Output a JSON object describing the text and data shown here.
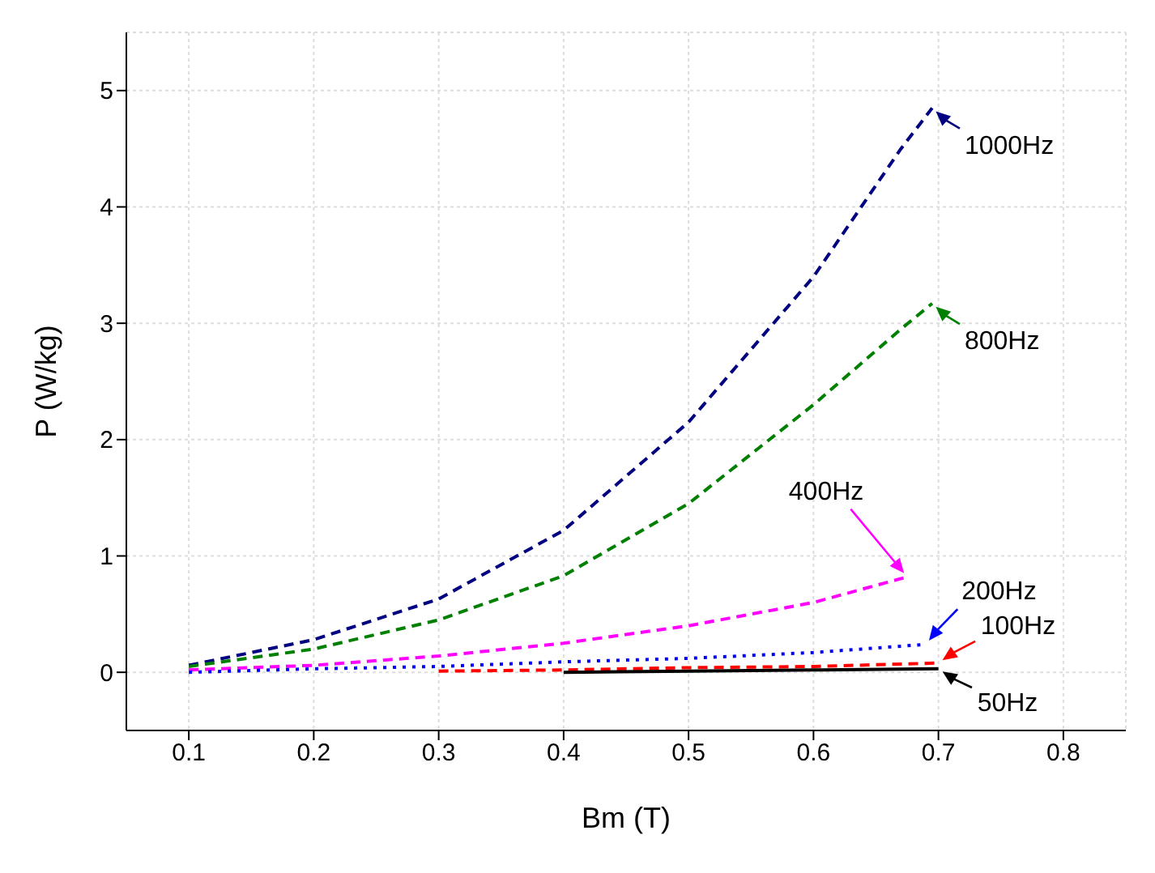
{
  "chart_data": {
    "type": "line",
    "xlabel": "Bm (T)",
    "ylabel": "P (W/kg)",
    "xlim": [
      0.05,
      0.85
    ],
    "xticks": [
      0.1,
      0.2,
      0.3,
      0.4,
      0.5,
      0.6,
      0.7,
      0.8
    ],
    "ylim": [
      -0.5,
      5.5
    ],
    "yticks": [
      0,
      1,
      2,
      3,
      4,
      5
    ],
    "grid": true,
    "legend": "right",
    "marker": "none",
    "series": [
      {
        "name": "1000Hz",
        "color": "#000080",
        "line_style": "dashed",
        "x": [
          0.1,
          0.2,
          0.3,
          0.4,
          0.5,
          0.6,
          0.67,
          0.695
        ],
        "values": [
          0.06,
          0.28,
          0.63,
          1.22,
          2.15,
          3.4,
          4.5,
          4.85
        ]
      },
      {
        "name": "800Hz",
        "color": "#008000",
        "line_style": "dashed",
        "x": [
          0.1,
          0.2,
          0.3,
          0.4,
          0.5,
          0.6,
          0.67,
          0.695
        ],
        "values": [
          0.05,
          0.2,
          0.45,
          0.83,
          1.45,
          2.3,
          2.95,
          3.17
        ]
      },
      {
        "name": "400Hz",
        "color": "#ff00ff",
        "line_style": "dashed",
        "x": [
          0.1,
          0.2,
          0.3,
          0.4,
          0.5,
          0.6,
          0.675
        ],
        "values": [
          0.02,
          0.06,
          0.14,
          0.25,
          0.4,
          0.6,
          0.82
        ]
      },
      {
        "name": "200Hz",
        "color": "#0000ff",
        "line_style": "dotted",
        "x": [
          0.1,
          0.2,
          0.3,
          0.4,
          0.5,
          0.6,
          0.69
        ],
        "values": [
          0.0,
          0.03,
          0.05,
          0.09,
          0.12,
          0.17,
          0.24
        ]
      },
      {
        "name": "100Hz",
        "color": "#ff0000",
        "line_style": "dashed",
        "x": [
          0.3,
          0.4,
          0.5,
          0.6,
          0.7
        ],
        "values": [
          0.01,
          0.02,
          0.04,
          0.05,
          0.08
        ]
      },
      {
        "name": "50Hz",
        "color": "#000000",
        "line_style": "solid",
        "x": [
          0.4,
          0.5,
          0.6,
          0.7
        ],
        "values": [
          0.0,
          0.01,
          0.02,
          0.03
        ]
      }
    ]
  }
}
